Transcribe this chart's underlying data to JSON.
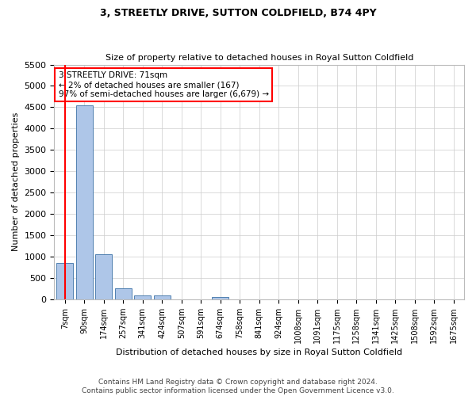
{
  "title": "3, STREETLY DRIVE, SUTTON COLDFIELD, B74 4PY",
  "subtitle": "Size of property relative to detached houses in Royal Sutton Coldfield",
  "xlabel": "Distribution of detached houses by size in Royal Sutton Coldfield",
  "ylabel": "Number of detached properties",
  "footnote1": "Contains HM Land Registry data © Crown copyright and database right 2024.",
  "footnote2": "Contains public sector information licensed under the Open Government Licence v3.0.",
  "bar_labels": [
    "7sqm",
    "90sqm",
    "174sqm",
    "257sqm",
    "341sqm",
    "424sqm",
    "507sqm",
    "591sqm",
    "674sqm",
    "758sqm",
    "841sqm",
    "924sqm",
    "1008sqm",
    "1091sqm",
    "1175sqm",
    "1258sqm",
    "1341sqm",
    "1425sqm",
    "1508sqm",
    "1592sqm",
    "1675sqm"
  ],
  "bar_values": [
    860,
    4550,
    1060,
    265,
    95,
    90,
    0,
    0,
    60,
    0,
    0,
    0,
    0,
    0,
    0,
    0,
    0,
    0,
    0,
    0,
    0
  ],
  "bar_color": "#aec6e8",
  "bar_edge_color": "#5080b0",
  "highlight_color": "#ff0000",
  "ylim": [
    0,
    5500
  ],
  "yticks": [
    0,
    500,
    1000,
    1500,
    2000,
    2500,
    3000,
    3500,
    4000,
    4500,
    5000,
    5500
  ],
  "annotation_text": "3 STREETLY DRIVE: 71sqm\n← 2% of detached houses are smaller (167)\n97% of semi-detached houses are larger (6,679) →",
  "annotation_box_color": "#ffffff",
  "annotation_box_edge": "#ff0000",
  "bg_color": "#ffffff",
  "grid_color": "#cccccc"
}
